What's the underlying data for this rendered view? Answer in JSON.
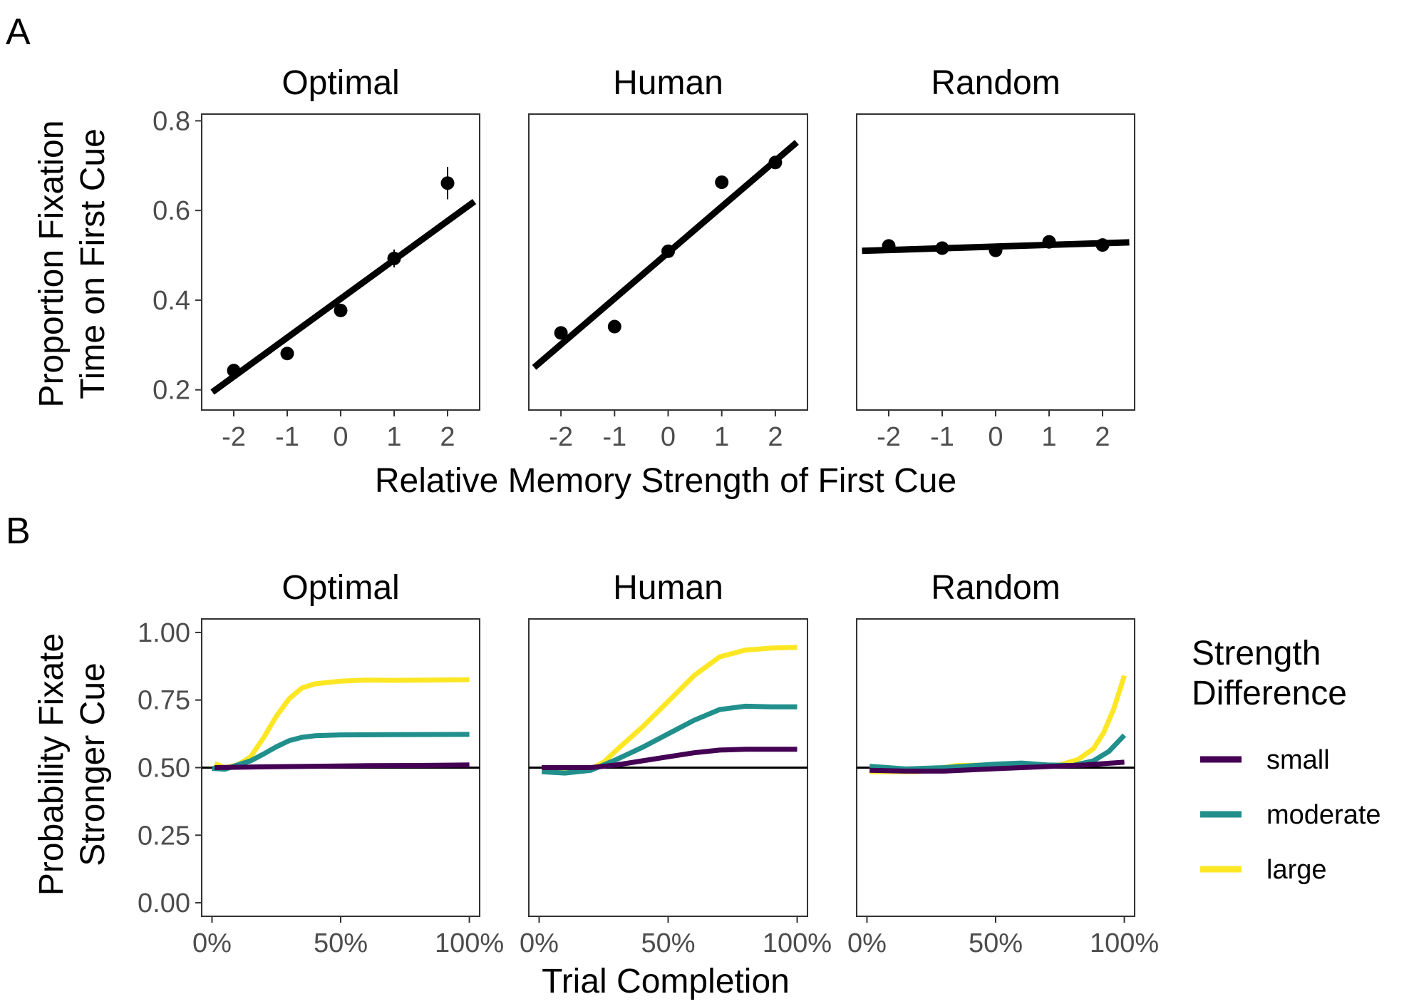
{
  "panel_labels": [
    "A",
    "B"
  ],
  "chart_data": [
    {
      "type": "scatter",
      "panel": "A",
      "ylabel": [
        "Proportion Fixation",
        "Time on First Cue"
      ],
      "xlabel": "Relative Memory Strength of First Cue",
      "x_ticks": [
        "-2",
        "-1",
        "0",
        "1",
        "2"
      ],
      "y_ticks": [
        "0.2",
        "0.4",
        "0.6",
        "0.8"
      ],
      "xlim": [
        -2.6,
        2.6
      ],
      "ylim": [
        0.155,
        0.815
      ],
      "grid": false,
      "facets": [
        {
          "title": "Optimal",
          "points": [
            {
              "x": -2,
              "y": 0.243,
              "err": 0.008
            },
            {
              "x": -1,
              "y": 0.281,
              "err": 0.006
            },
            {
              "x": 0,
              "y": 0.377,
              "err": 0.008
            },
            {
              "x": 1,
              "y": 0.493,
              "err": 0.02
            },
            {
              "x": 2,
              "y": 0.661,
              "err": 0.036
            }
          ],
          "fit": [
            [
              -2.4,
              0.195
            ],
            [
              2.5,
              0.62
            ]
          ]
        },
        {
          "title": "Human",
          "points": [
            {
              "x": -2,
              "y": 0.327,
              "err": 0.005
            },
            {
              "x": -1,
              "y": 0.341,
              "err": 0.005
            },
            {
              "x": 0,
              "y": 0.509,
              "err": 0.006
            },
            {
              "x": 1,
              "y": 0.663,
              "err": 0.01
            },
            {
              "x": 2,
              "y": 0.707,
              "err": 0.006
            }
          ],
          "fit": [
            [
              -2.5,
              0.25
            ],
            [
              2.4,
              0.752
            ]
          ]
        },
        {
          "title": "Random",
          "points": [
            {
              "x": -2,
              "y": 0.521,
              "err": 0.004
            },
            {
              "x": -1,
              "y": 0.516,
              "err": 0.004
            },
            {
              "x": 0,
              "y": 0.511,
              "err": 0.004
            },
            {
              "x": 1,
              "y": 0.53,
              "err": 0.004
            },
            {
              "x": 2,
              "y": 0.523,
              "err": 0.004
            }
          ],
          "fit": [
            [
              -2.5,
              0.51
            ],
            [
              2.5,
              0.529
            ]
          ]
        }
      ]
    },
    {
      "type": "line",
      "panel": "B",
      "ylabel": [
        "Probability Fixate",
        "Stronger Cue"
      ],
      "xlabel": "Trial Completion",
      "x_ticks": [
        {
          "x": 0,
          "label": "0%"
        },
        {
          "x": 50,
          "label": "50%"
        },
        {
          "x": 100,
          "label": "100%"
        }
      ],
      "y_ticks": [
        "0.00",
        "0.25",
        "0.50",
        "0.75",
        "1.00"
      ],
      "xlim": [
        -4,
        104
      ],
      "ylim": [
        -0.05,
        1.05
      ],
      "reference_line": 0.5,
      "legend": {
        "title": [
          "Strength",
          "Difference"
        ],
        "placement": "right",
        "entries": [
          {
            "label": "small",
            "color": "#440154"
          },
          {
            "label": "moderate",
            "color": "#21908c"
          },
          {
            "label": "large",
            "color": "#fde725"
          }
        ]
      },
      "facets": [
        {
          "title": "Optimal",
          "series": [
            {
              "label": "small",
              "color": "#440154",
              "points": [
                [
                  1,
                  0.5
                ],
                [
                  20,
                  0.503
                ],
                [
                  40,
                  0.505
                ],
                [
                  60,
                  0.507
                ],
                [
                  80,
                  0.508
                ],
                [
                  100,
                  0.51
                ]
              ]
            },
            {
              "label": "moderate",
              "color": "#21908c",
              "points": [
                [
                  0,
                  0.497
                ],
                [
                  5,
                  0.494
                ],
                [
                  10,
                  0.51
                ],
                [
                  15,
                  0.525
                ],
                [
                  20,
                  0.55
                ],
                [
                  25,
                  0.577
                ],
                [
                  30,
                  0.6
                ],
                [
                  35,
                  0.612
                ],
                [
                  40,
                  0.618
                ],
                [
                  50,
                  0.621
                ],
                [
                  70,
                  0.622
                ],
                [
                  100,
                  0.623
                ]
              ]
            },
            {
              "label": "large",
              "color": "#fde725",
              "points": [
                [
                  1,
                  0.515
                ],
                [
                  5,
                  0.5
                ],
                [
                  10,
                  0.51
                ],
                [
                  15,
                  0.54
                ],
                [
                  20,
                  0.61
                ],
                [
                  25,
                  0.69
                ],
                [
                  30,
                  0.755
                ],
                [
                  35,
                  0.795
                ],
                [
                  40,
                  0.81
                ],
                [
                  50,
                  0.82
                ],
                [
                  60,
                  0.824
                ],
                [
                  70,
                  0.823
                ],
                [
                  85,
                  0.824
                ],
                [
                  100,
                  0.825
                ]
              ]
            }
          ]
        },
        {
          "title": "Human",
          "series": [
            {
              "label": "small",
              "color": "#440154",
              "points": [
                [
                  1,
                  0.5
                ],
                [
                  20,
                  0.5
                ],
                [
                  30,
                  0.51
                ],
                [
                  40,
                  0.525
                ],
                [
                  50,
                  0.54
                ],
                [
                  60,
                  0.555
                ],
                [
                  70,
                  0.565
                ],
                [
                  80,
                  0.568
                ],
                [
                  100,
                  0.568
                ]
              ]
            },
            {
              "label": "moderate",
              "color": "#21908c",
              "points": [
                [
                  1,
                  0.485
                ],
                [
                  10,
                  0.48
                ],
                [
                  20,
                  0.49
                ],
                [
                  30,
                  0.53
                ],
                [
                  40,
                  0.575
                ],
                [
                  50,
                  0.625
                ],
                [
                  60,
                  0.675
                ],
                [
                  70,
                  0.715
                ],
                [
                  80,
                  0.727
                ],
                [
                  90,
                  0.725
                ],
                [
                  100,
                  0.725
                ]
              ]
            },
            {
              "label": "large",
              "color": "#fde725",
              "points": [
                [
                  1,
                  0.5
                ],
                [
                  10,
                  0.49
                ],
                [
                  20,
                  0.495
                ],
                [
                  25,
                  0.52
                ],
                [
                  30,
                  0.565
                ],
                [
                  40,
                  0.65
                ],
                [
                  50,
                  0.745
                ],
                [
                  60,
                  0.84
                ],
                [
                  70,
                  0.91
                ],
                [
                  80,
                  0.935
                ],
                [
                  90,
                  0.942
                ],
                [
                  100,
                  0.945
                ]
              ]
            }
          ]
        },
        {
          "title": "Random",
          "series": [
            {
              "label": "small",
              "color": "#440154",
              "points": [
                [
                  1,
                  0.49
                ],
                [
                  15,
                  0.487
                ],
                [
                  30,
                  0.487
                ],
                [
                  50,
                  0.496
                ],
                [
                  70,
                  0.504
                ],
                [
                  85,
                  0.51
                ],
                [
                  100,
                  0.52
                ]
              ]
            },
            {
              "label": "moderate",
              "color": "#21908c",
              "points": [
                [
                  1,
                  0.505
                ],
                [
                  15,
                  0.495
                ],
                [
                  30,
                  0.5
                ],
                [
                  50,
                  0.513
                ],
                [
                  60,
                  0.517
                ],
                [
                  70,
                  0.51
                ],
                [
                  80,
                  0.508
                ],
                [
                  88,
                  0.525
                ],
                [
                  94,
                  0.56
                ],
                [
                  100,
                  0.62
                ]
              ]
            },
            {
              "label": "large",
              "color": "#fde725",
              "points": [
                [
                  1,
                  0.485
                ],
                [
                  20,
                  0.485
                ],
                [
                  35,
                  0.508
                ],
                [
                  50,
                  0.51
                ],
                [
                  65,
                  0.505
                ],
                [
                  75,
                  0.51
                ],
                [
                  82,
                  0.53
                ],
                [
                  88,
                  0.57
                ],
                [
                  92,
                  0.63
                ],
                [
                  96,
                  0.72
                ],
                [
                  100,
                  0.84
                ]
              ]
            }
          ]
        }
      ]
    }
  ]
}
